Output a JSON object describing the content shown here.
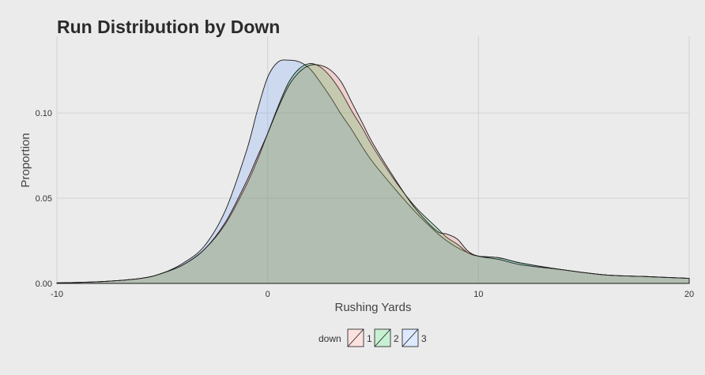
{
  "chart_data": {
    "type": "area",
    "title": "Run Distribution by Down",
    "xlabel": "Rushing Yards",
    "ylabel": "Proportion",
    "xlim": [
      -10,
      20
    ],
    "ylim": [
      0,
      0.145
    ],
    "x_ticks": [
      -10,
      0,
      10,
      20
    ],
    "x_tick_labels": [
      "-10",
      "0",
      "10",
      "20"
    ],
    "y_ticks": [
      0,
      0.05,
      0.1
    ],
    "y_tick_labels": [
      "0.00",
      "0.05",
      "0.10"
    ],
    "grid": true,
    "legend": {
      "title": "down",
      "position": "bottom"
    },
    "series": [
      {
        "name": "1",
        "color": "#F8766D",
        "x": [
          -10,
          -8,
          -6,
          -5,
          -4,
          -3,
          -2,
          -1,
          -0.5,
          0,
          0.5,
          1,
          1.5,
          2,
          2.5,
          3,
          3.5,
          4,
          4.5,
          5,
          6,
          7,
          8,
          8.5,
          9,
          9.5,
          10,
          11,
          12,
          14,
          16,
          18,
          20
        ],
        "y": [
          0.0003,
          0.001,
          0.003,
          0.006,
          0.011,
          0.02,
          0.036,
          0.06,
          0.074,
          0.088,
          0.103,
          0.116,
          0.124,
          0.128,
          0.128,
          0.125,
          0.118,
          0.106,
          0.094,
          0.082,
          0.062,
          0.044,
          0.031,
          0.029,
          0.026,
          0.019,
          0.016,
          0.014,
          0.011,
          0.008,
          0.005,
          0.004,
          0.003
        ]
      },
      {
        "name": "2",
        "color": "#00BA38",
        "x": [
          -10,
          -8,
          -6,
          -5,
          -4,
          -3,
          -2,
          -1,
          -0.5,
          0,
          0.5,
          1,
          1.5,
          2,
          2.5,
          3,
          3.5,
          4,
          4.5,
          5,
          6,
          7,
          8,
          8.5,
          9,
          9.5,
          10,
          11,
          12,
          14,
          16,
          18,
          20
        ],
        "y": [
          0.0003,
          0.001,
          0.003,
          0.006,
          0.011,
          0.02,
          0.035,
          0.058,
          0.072,
          0.088,
          0.104,
          0.118,
          0.126,
          0.129,
          0.127,
          0.121,
          0.112,
          0.101,
          0.091,
          0.08,
          0.061,
          0.045,
          0.033,
          0.027,
          0.023,
          0.018,
          0.016,
          0.015,
          0.012,
          0.008,
          0.005,
          0.004,
          0.003
        ]
      },
      {
        "name": "3",
        "color": "#619CFF",
        "x": [
          -10,
          -8,
          -6,
          -5,
          -4,
          -3,
          -2,
          -1,
          -0.5,
          0,
          0.5,
          1,
          1.5,
          2,
          2.5,
          3,
          3.5,
          4,
          4.5,
          5,
          6,
          7,
          8,
          8.5,
          9,
          9.5,
          10,
          11,
          12,
          14,
          16,
          18,
          20
        ],
        "y": [
          0.0003,
          0.001,
          0.003,
          0.006,
          0.012,
          0.022,
          0.043,
          0.078,
          0.101,
          0.121,
          0.13,
          0.131,
          0.13,
          0.126,
          0.118,
          0.109,
          0.099,
          0.09,
          0.08,
          0.071,
          0.056,
          0.042,
          0.03,
          0.025,
          0.021,
          0.018,
          0.016,
          0.015,
          0.012,
          0.008,
          0.005,
          0.004,
          0.003
        ]
      }
    ]
  }
}
